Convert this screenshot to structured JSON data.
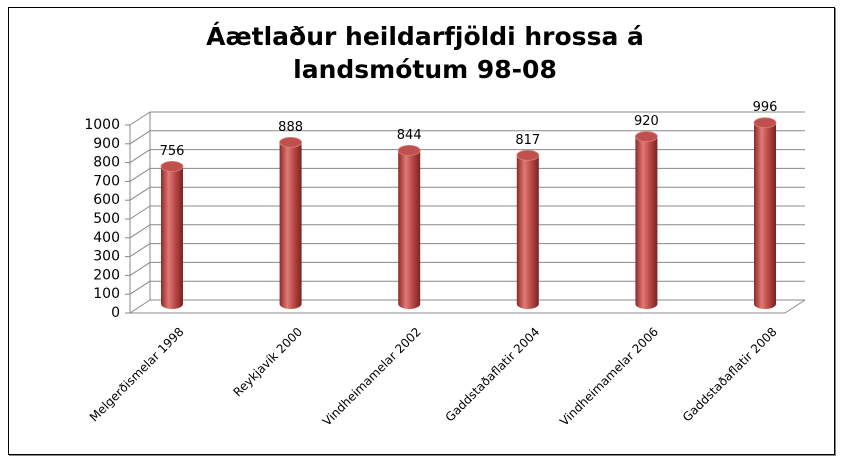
{
  "chart_data": {
    "type": "bar",
    "title": "Áætlaður heildarfjöldi hrossa á landsmótum 98-08",
    "categories": [
      "Melgerðismelar 1998",
      "Reykjavík 2000",
      "Vindheimamelar 2002",
      "Gaddstaðaflatir 2004",
      "Vindheimamelar 2006",
      "Gaddstaðaflatir 2008"
    ],
    "values": [
      756,
      888,
      844,
      817,
      920,
      996
    ],
    "color": "#c0504d",
    "ylim": [
      0,
      1000
    ],
    "yticks": [
      0,
      100,
      200,
      300,
      400,
      500,
      600,
      700,
      800,
      900,
      1000
    ],
    "grid": true
  }
}
